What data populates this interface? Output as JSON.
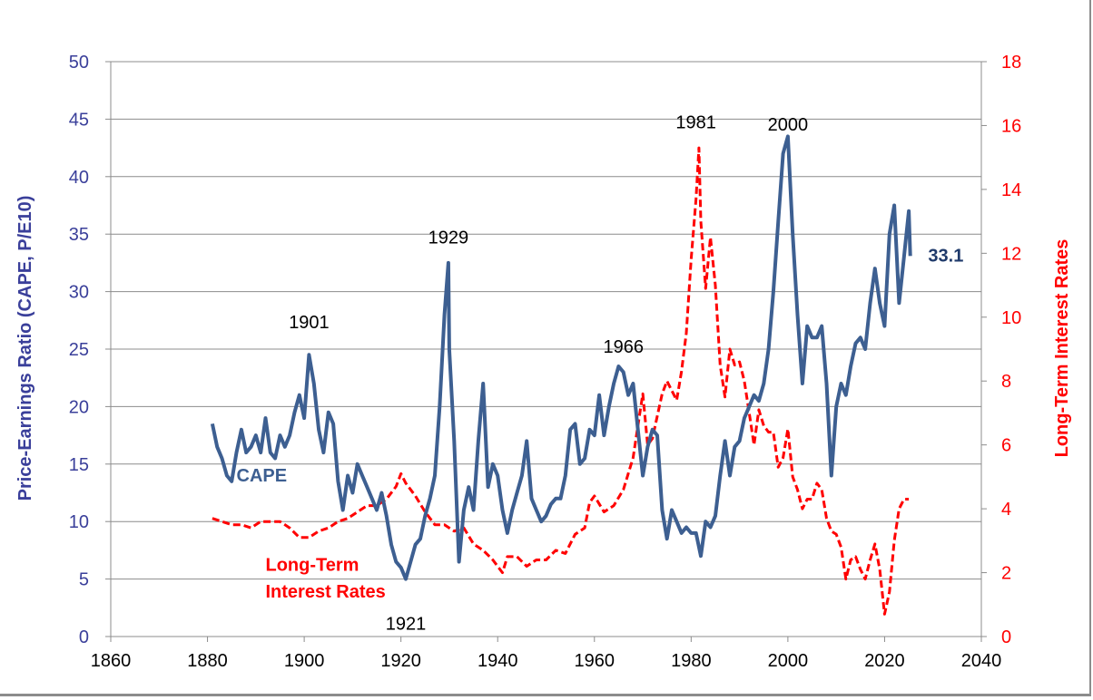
{
  "chart_data": {
    "type": "line",
    "xlabel": "",
    "ylabel": "Price-Earnings Ratio (CAPE, P/E10)",
    "y2label": "Long-Term Interest Rates",
    "xlim": [
      1860,
      2040
    ],
    "ylim": [
      0,
      50
    ],
    "y2lim": [
      0,
      18
    ],
    "x_ticks": [
      "1860",
      "1880",
      "1900",
      "1920",
      "1940",
      "1960",
      "1980",
      "2000",
      "2020",
      "2040"
    ],
    "y_ticks": [
      "0",
      "5",
      "10",
      "15",
      "20",
      "25",
      "30",
      "35",
      "40",
      "45",
      "50"
    ],
    "y2_ticks": [
      "0",
      "2",
      "4",
      "6",
      "8",
      "10",
      "12",
      "14",
      "16",
      "18"
    ],
    "grid": "horizontal",
    "series": [
      {
        "name": "CAPE",
        "axis": "left",
        "color": "#3d5f91",
        "style": "solid",
        "points": [
          [
            1881,
            18.5
          ],
          [
            1882,
            16.5
          ],
          [
            1883,
            15.5
          ],
          [
            1884,
            14
          ],
          [
            1885,
            13.5
          ],
          [
            1886,
            16
          ],
          [
            1887,
            18
          ],
          [
            1888,
            16
          ],
          [
            1889,
            16.5
          ],
          [
            1890,
            17.5
          ],
          [
            1891,
            16
          ],
          [
            1892,
            19
          ],
          [
            1893,
            16
          ],
          [
            1894,
            15.5
          ],
          [
            1895,
            17.5
          ],
          [
            1896,
            16.5
          ],
          [
            1897,
            17.5
          ],
          [
            1898,
            19.5
          ],
          [
            1899,
            21
          ],
          [
            1900,
            19
          ],
          [
            1901,
            24.5
          ],
          [
            1902,
            22
          ],
          [
            1903,
            18
          ],
          [
            1904,
            16
          ],
          [
            1905,
            19.5
          ],
          [
            1906,
            18.5
          ],
          [
            1907,
            13.5
          ],
          [
            1908,
            11
          ],
          [
            1909,
            14
          ],
          [
            1910,
            12.5
          ],
          [
            1911,
            15
          ],
          [
            1912,
            14
          ],
          [
            1913,
            13
          ],
          [
            1914,
            12
          ],
          [
            1915,
            11
          ],
          [
            1916,
            12.5
          ],
          [
            1917,
            10.5
          ],
          [
            1918,
            8
          ],
          [
            1919,
            6.5
          ],
          [
            1920,
            6
          ],
          [
            1921,
            5
          ],
          [
            1922,
            6.5
          ],
          [
            1923,
            8
          ],
          [
            1924,
            8.5
          ],
          [
            1925,
            10.5
          ],
          [
            1926,
            12
          ],
          [
            1927,
            14
          ],
          [
            1928,
            20
          ],
          [
            1929,
            28
          ],
          [
            1929.8,
            32.5
          ],
          [
            1930,
            25
          ],
          [
            1931,
            17
          ],
          [
            1932,
            6.5
          ],
          [
            1933,
            11
          ],
          [
            1934,
            13
          ],
          [
            1935,
            11
          ],
          [
            1936,
            17
          ],
          [
            1937,
            22
          ],
          [
            1938,
            13
          ],
          [
            1939,
            15
          ],
          [
            1940,
            14
          ],
          [
            1941,
            11
          ],
          [
            1942,
            9
          ],
          [
            1943,
            11
          ],
          [
            1944,
            12.5
          ],
          [
            1945,
            14
          ],
          [
            1946,
            17
          ],
          [
            1947,
            12
          ],
          [
            1948,
            11
          ],
          [
            1949,
            10
          ],
          [
            1950,
            10.5
          ],
          [
            1951,
            11.5
          ],
          [
            1952,
            12
          ],
          [
            1953,
            12
          ],
          [
            1954,
            14
          ],
          [
            1955,
            18
          ],
          [
            1956,
            18.5
          ],
          [
            1957,
            15
          ],
          [
            1958,
            15.5
          ],
          [
            1959,
            18
          ],
          [
            1960,
            17.5
          ],
          [
            1961,
            21
          ],
          [
            1962,
            17.5
          ],
          [
            1963,
            20
          ],
          [
            1964,
            22
          ],
          [
            1965,
            23.5
          ],
          [
            1966,
            23
          ],
          [
            1967,
            21
          ],
          [
            1968,
            22
          ],
          [
            1969,
            18
          ],
          [
            1970,
            14
          ],
          [
            1971,
            16.5
          ],
          [
            1972,
            18
          ],
          [
            1973,
            17.5
          ],
          [
            1974,
            11
          ],
          [
            1975,
            8.5
          ],
          [
            1976,
            11
          ],
          [
            1977,
            10
          ],
          [
            1978,
            9
          ],
          [
            1979,
            9.5
          ],
          [
            1980,
            9
          ],
          [
            1981,
            9
          ],
          [
            1982,
            7
          ],
          [
            1983,
            10
          ],
          [
            1984,
            9.5
          ],
          [
            1985,
            10.5
          ],
          [
            1986,
            14
          ],
          [
            1987,
            17
          ],
          [
            1988,
            14
          ],
          [
            1989,
            16.5
          ],
          [
            1990,
            17
          ],
          [
            1991,
            19
          ],
          [
            1992,
            20
          ],
          [
            1993,
            21
          ],
          [
            1994,
            20.5
          ],
          [
            1995,
            22
          ],
          [
            1996,
            25
          ],
          [
            1997,
            30
          ],
          [
            1998,
            36
          ],
          [
            1999,
            42
          ],
          [
            2000,
            43.5
          ],
          [
            2001,
            35
          ],
          [
            2002,
            28
          ],
          [
            2003,
            22
          ],
          [
            2004,
            27
          ],
          [
            2005,
            26
          ],
          [
            2006,
            26
          ],
          [
            2007,
            27
          ],
          [
            2008,
            22
          ],
          [
            2009,
            14
          ],
          [
            2010,
            20
          ],
          [
            2011,
            22
          ],
          [
            2012,
            21
          ],
          [
            2013,
            23.5
          ],
          [
            2014,
            25.5
          ],
          [
            2015,
            26
          ],
          [
            2016,
            25
          ],
          [
            2017,
            29
          ],
          [
            2018,
            32
          ],
          [
            2019,
            29
          ],
          [
            2020,
            27
          ],
          [
            2021,
            35
          ],
          [
            2022,
            37.5
          ],
          [
            2023,
            29
          ],
          [
            2024,
            33
          ],
          [
            2025,
            37
          ],
          [
            2025.3,
            33.1
          ]
        ]
      },
      {
        "name": "Long-Term Interest Rates",
        "axis": "right",
        "color": "#ff0000",
        "style": "dashed",
        "points": [
          [
            1881,
            3.7
          ],
          [
            1883,
            3.6
          ],
          [
            1885,
            3.5
          ],
          [
            1887,
            3.5
          ],
          [
            1889,
            3.4
          ],
          [
            1891,
            3.6
          ],
          [
            1893,
            3.6
          ],
          [
            1895,
            3.6
          ],
          [
            1897,
            3.4
          ],
          [
            1899,
            3.1
          ],
          [
            1901,
            3.1
          ],
          [
            1903,
            3.3
          ],
          [
            1905,
            3.4
          ],
          [
            1907,
            3.6
          ],
          [
            1909,
            3.7
          ],
          [
            1911,
            3.9
          ],
          [
            1913,
            4.1
          ],
          [
            1915,
            4.1
          ],
          [
            1917,
            4.3
          ],
          [
            1919,
            4.7
          ],
          [
            1920,
            5.1
          ],
          [
            1921,
            4.8
          ],
          [
            1923,
            4.4
          ],
          [
            1925,
            3.9
          ],
          [
            1927,
            3.5
          ],
          [
            1929,
            3.5
          ],
          [
            1931,
            3.3
          ],
          [
            1933,
            3.4
          ],
          [
            1935,
            2.9
          ],
          [
            1937,
            2.7
          ],
          [
            1939,
            2.4
          ],
          [
            1941,
            2.0
          ],
          [
            1942,
            2.5
          ],
          [
            1944,
            2.5
          ],
          [
            1946,
            2.2
          ],
          [
            1948,
            2.4
          ],
          [
            1950,
            2.4
          ],
          [
            1952,
            2.7
          ],
          [
            1954,
            2.6
          ],
          [
            1956,
            3.2
          ],
          [
            1958,
            3.4
          ],
          [
            1959,
            4.2
          ],
          [
            1960,
            4.4
          ],
          [
            1962,
            3.9
          ],
          [
            1964,
            4.1
          ],
          [
            1966,
            4.6
          ],
          [
            1968,
            5.6
          ],
          [
            1969,
            6.6
          ],
          [
            1970,
            7.6
          ],
          [
            1971,
            6.0
          ],
          [
            1972,
            6.2
          ],
          [
            1973,
            6.9
          ],
          [
            1974,
            7.6
          ],
          [
            1975,
            8.0
          ],
          [
            1976,
            7.7
          ],
          [
            1977,
            7.4
          ],
          [
            1978,
            8.3
          ],
          [
            1979,
            9.5
          ],
          [
            1980,
            11.8
          ],
          [
            1981,
            13.7
          ],
          [
            1981.6,
            15.3
          ],
          [
            1982,
            13.0
          ],
          [
            1983,
            10.9
          ],
          [
            1984,
            12.5
          ],
          [
            1985,
            11.0
          ],
          [
            1986,
            8.5
          ],
          [
            1987,
            7.5
          ],
          [
            1988,
            9.0
          ],
          [
            1989,
            8.5
          ],
          [
            1990,
            8.6
          ],
          [
            1991,
            8.0
          ],
          [
            1992,
            7.0
          ],
          [
            1993,
            6.0
          ],
          [
            1994,
            7.1
          ],
          [
            1995,
            6.6
          ],
          [
            1996,
            6.4
          ],
          [
            1997,
            6.4
          ],
          [
            1998,
            5.3
          ],
          [
            1999,
            5.6
          ],
          [
            2000,
            6.5
          ],
          [
            2001,
            5.0
          ],
          [
            2002,
            4.6
          ],
          [
            2003,
            4.0
          ],
          [
            2004,
            4.3
          ],
          [
            2005,
            4.3
          ],
          [
            2006,
            4.8
          ],
          [
            2007,
            4.6
          ],
          [
            2008,
            3.7
          ],
          [
            2009,
            3.3
          ],
          [
            2010,
            3.2
          ],
          [
            2011,
            2.8
          ],
          [
            2012,
            1.8
          ],
          [
            2013,
            2.4
          ],
          [
            2014,
            2.5
          ],
          [
            2015,
            2.1
          ],
          [
            2016,
            1.8
          ],
          [
            2017,
            2.4
          ],
          [
            2018,
            2.9
          ],
          [
            2019,
            2.1
          ],
          [
            2020,
            0.7
          ],
          [
            2021,
            1.4
          ],
          [
            2022,
            3.0
          ],
          [
            2023,
            4.0
          ],
          [
            2024,
            4.3
          ],
          [
            2025,
            4.3
          ]
        ]
      }
    ],
    "annotations": [
      {
        "text": "1901",
        "x": 1901,
        "y": 26.8
      },
      {
        "text": "1929",
        "x": 1929.8,
        "y": 34.2
      },
      {
        "text": "1921",
        "x": 1921,
        "y": 0.6
      },
      {
        "text": "1966",
        "x": 1966,
        "y": 24.7
      },
      {
        "text": "1981",
        "x": 1981,
        "y": 44.2
      },
      {
        "text": "2000",
        "x": 2000,
        "y": 44
      },
      {
        "text": "33.1",
        "x": 2029,
        "y": 32.6
      },
      {
        "text": "CAPE",
        "x": 1886,
        "y": 13.5
      },
      {
        "text": "Long-Term",
        "x": 1892,
        "y": 5.7
      },
      {
        "text": "Interest Rates",
        "x": 1892,
        "y": 3.4
      }
    ]
  }
}
